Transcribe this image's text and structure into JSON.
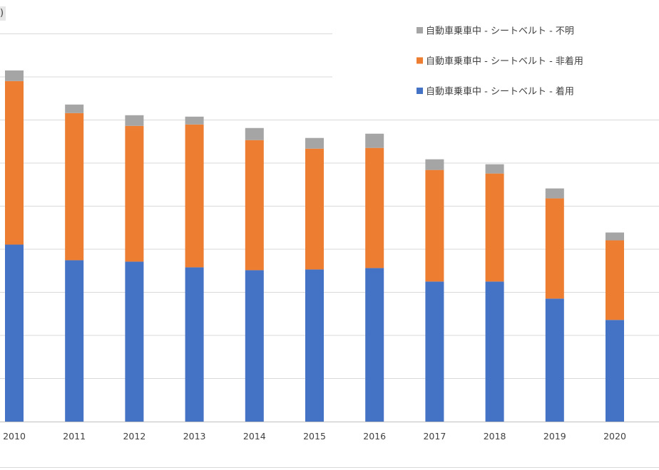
{
  "page": {
    "title_fragment": ")"
  },
  "chart_data": {
    "type": "bar",
    "stacked": true,
    "categories": [
      "2010",
      "2011",
      "2012",
      "2013",
      "2014",
      "2015",
      "2016",
      "2017",
      "2018",
      "2019",
      "2020"
    ],
    "series": [
      {
        "name": "自動車乗車中 - シートベルト - 着用",
        "color": "#4472c4",
        "values": [
          249,
          227,
          225,
          217,
          213,
          214,
          216,
          197,
          197,
          173,
          143
        ]
      },
      {
        "name": "自動車乗車中 - シートベルト - 非着用",
        "color": "#ed7d31",
        "values": [
          230,
          207,
          191,
          201,
          183,
          170,
          169,
          157,
          152,
          141,
          112
        ]
      },
      {
        "name": "自動車乗車中 - シートベルト - 不明",
        "color": "#a5a5a5",
        "values": [
          15,
          12,
          15,
          11,
          17,
          15,
          20,
          15,
          13,
          14,
          11
        ]
      }
    ],
    "ylim": [
      0,
      545
    ],
    "grid": true,
    "legend": {
      "position": "top-right"
    },
    "title": "",
    "xlabel": "",
    "ylabel": ""
  }
}
